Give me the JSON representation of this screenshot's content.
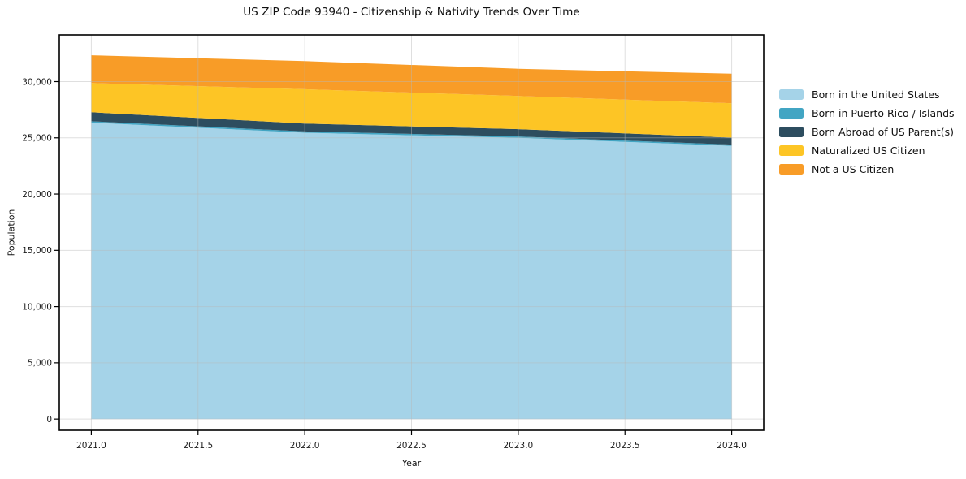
{
  "chart_data": {
    "type": "area",
    "stacked": true,
    "title": "US ZIP Code 93940 - Citizenship & Nativity Trends Over Time",
    "xlabel": "Year",
    "ylabel": "Population",
    "x": [
      2021,
      2022,
      2023,
      2024
    ],
    "series": [
      {
        "name": "Born in the United States",
        "color": "#a5d3e8",
        "values": [
          26350,
          25450,
          25000,
          24280
        ]
      },
      {
        "name": "Born in Puerto Rico / Islands",
        "color": "#42a5c3",
        "values": [
          120,
          120,
          120,
          120
        ]
      },
      {
        "name": "Born Abroad of US Parent(s)",
        "color": "#2d4d5f",
        "values": [
          800,
          700,
          650,
          620
        ]
      },
      {
        "name": "Naturalized US Citizen",
        "color": "#fdc525",
        "values": [
          2600,
          3050,
          2950,
          3050
        ]
      },
      {
        "name": "Not a US Citizen",
        "color": "#f89c27",
        "values": [
          2470,
          2500,
          2420,
          2630
        ]
      }
    ],
    "x_ticks": [
      2021,
      2021.5,
      2022,
      2022.5,
      2023,
      2023.5,
      2024
    ],
    "x_tick_labels": [
      "2021.0",
      "2021.5",
      "2022.0",
      "2022.5",
      "2023.0",
      "2023.5",
      "2024.0"
    ],
    "y_ticks": [
      0,
      5000,
      10000,
      15000,
      20000,
      25000,
      30000
    ],
    "y_tick_labels": [
      "0",
      "5,000",
      "10,000",
      "15,000",
      "20,000",
      "25,000",
      "30,000"
    ],
    "xlim": [
      2020.85,
      2024.15
    ],
    "ylim": [
      -1000,
      34150
    ],
    "grid": true,
    "legend_position": "right-outside"
  }
}
